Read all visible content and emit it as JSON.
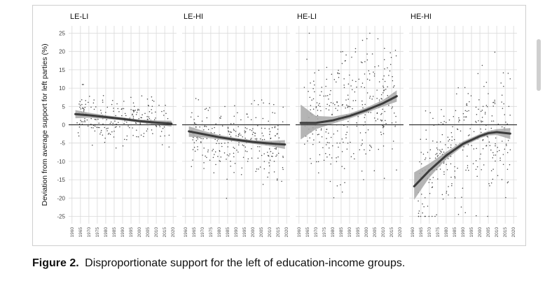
{
  "caption": {
    "label": "Figure 2.",
    "text": "Disproportionate support for the left of education-income groups."
  },
  "chart_data": {
    "type": "scatter",
    "ylabel": "Deviation from average support for left parties (%)",
    "ylim": [
      -27,
      27
    ],
    "yticks": [
      -25,
      -20,
      -15,
      -10,
      -5,
      0,
      5,
      10,
      15,
      20,
      25
    ],
    "xlim": [
      1958,
      2022
    ],
    "xticks": [
      1960,
      1965,
      1970,
      1975,
      1980,
      1985,
      1990,
      1995,
      2000,
      2005,
      2010,
      2015,
      2020
    ],
    "grid": true,
    "colors": {
      "points": "#444444",
      "line": "#3c3c3c",
      "band": "#a8a8a8",
      "zero": "#333333",
      "grid": "#d9d9d9"
    },
    "panels": [
      {
        "title": "LE-LI",
        "trend": [
          [
            1962,
            2.9
          ],
          [
            1970,
            2.6
          ],
          [
            1980,
            2.1
          ],
          [
            1990,
            1.6
          ],
          [
            2000,
            1.0
          ],
          [
            2010,
            0.6
          ],
          [
            2019,
            0.3
          ]
        ],
        "band": [
          [
            1962,
            1.8,
            4.0
          ],
          [
            1970,
            1.9,
            3.3
          ],
          [
            1980,
            1.6,
            2.6
          ],
          [
            1990,
            1.2,
            2.0
          ],
          [
            2000,
            0.6,
            1.4
          ],
          [
            2010,
            0.0,
            1.2
          ],
          [
            2019,
            -0.5,
            1.1
          ]
        ],
        "scatter": {
          "x_from": 1963,
          "x_to": 2018,
          "mean_shift": 0,
          "spread": 3.2,
          "n": 230,
          "ymin": -8,
          "ymax": 11,
          "seed": 11
        }
      },
      {
        "title": "LE-HI",
        "trend": [
          [
            1962,
            -1.8
          ],
          [
            1970,
            -2.5
          ],
          [
            1980,
            -3.4
          ],
          [
            1990,
            -4.1
          ],
          [
            2000,
            -4.7
          ],
          [
            2010,
            -5.1
          ],
          [
            2019,
            -5.4
          ]
        ],
        "band": [
          [
            1962,
            -3.3,
            -0.4
          ],
          [
            1970,
            -3.4,
            -1.6
          ],
          [
            1980,
            -4.0,
            -2.8
          ],
          [
            1990,
            -4.6,
            -3.6
          ],
          [
            2000,
            -5.2,
            -4.2
          ],
          [
            2010,
            -5.8,
            -4.4
          ],
          [
            2019,
            -6.6,
            -4.2
          ]
        ],
        "scatter": {
          "x_from": 1963,
          "x_to": 2018,
          "mean_shift": 0,
          "spread": 4.5,
          "n": 270,
          "ymin": -25,
          "ymax": 13,
          "seed": 23
        }
      },
      {
        "title": "HE-LI",
        "trend": [
          [
            1961,
            0.5
          ],
          [
            1970,
            0.5
          ],
          [
            1980,
            1.2
          ],
          [
            1990,
            2.4
          ],
          [
            2000,
            4.0
          ],
          [
            2010,
            5.9
          ],
          [
            2018,
            7.8
          ]
        ],
        "band": [
          [
            1961,
            -4.0,
            5.5
          ],
          [
            1970,
            -1.2,
            2.4
          ],
          [
            1980,
            0.3,
            2.2
          ],
          [
            1990,
            1.7,
            3.1
          ],
          [
            2000,
            3.3,
            4.7
          ],
          [
            2010,
            5.0,
            6.8
          ],
          [
            2018,
            6.3,
            9.4
          ]
        ],
        "scatter": {
          "x_from": 1963,
          "x_to": 2018,
          "mean_shift": 0,
          "spread": 8.5,
          "n": 330,
          "ymin": -25,
          "ymax": 25,
          "seed": 37
        }
      },
      {
        "title": "HE-HI",
        "trend": [
          [
            1961,
            -16.8
          ],
          [
            1970,
            -12.5
          ],
          [
            1980,
            -8.4
          ],
          [
            1990,
            -5.2
          ],
          [
            2000,
            -3.1
          ],
          [
            2005,
            -2.3
          ],
          [
            2010,
            -2.0
          ],
          [
            2018,
            -2.4
          ]
        ],
        "band": [
          [
            1961,
            -20.5,
            -13.0
          ],
          [
            1970,
            -14.4,
            -10.6
          ],
          [
            1980,
            -9.4,
            -7.4
          ],
          [
            1990,
            -5.9,
            -4.5
          ],
          [
            2000,
            -3.7,
            -2.5
          ],
          [
            2005,
            -2.9,
            -1.7
          ],
          [
            2010,
            -2.8,
            -1.2
          ],
          [
            2018,
            -3.9,
            -0.9
          ]
        ],
        "scatter": {
          "x_from": 1963,
          "x_to": 2018,
          "mean_shift": 0,
          "spread": 8.0,
          "n": 300,
          "ymin": -25,
          "ymax": 25,
          "seed": 53
        }
      }
    ]
  }
}
